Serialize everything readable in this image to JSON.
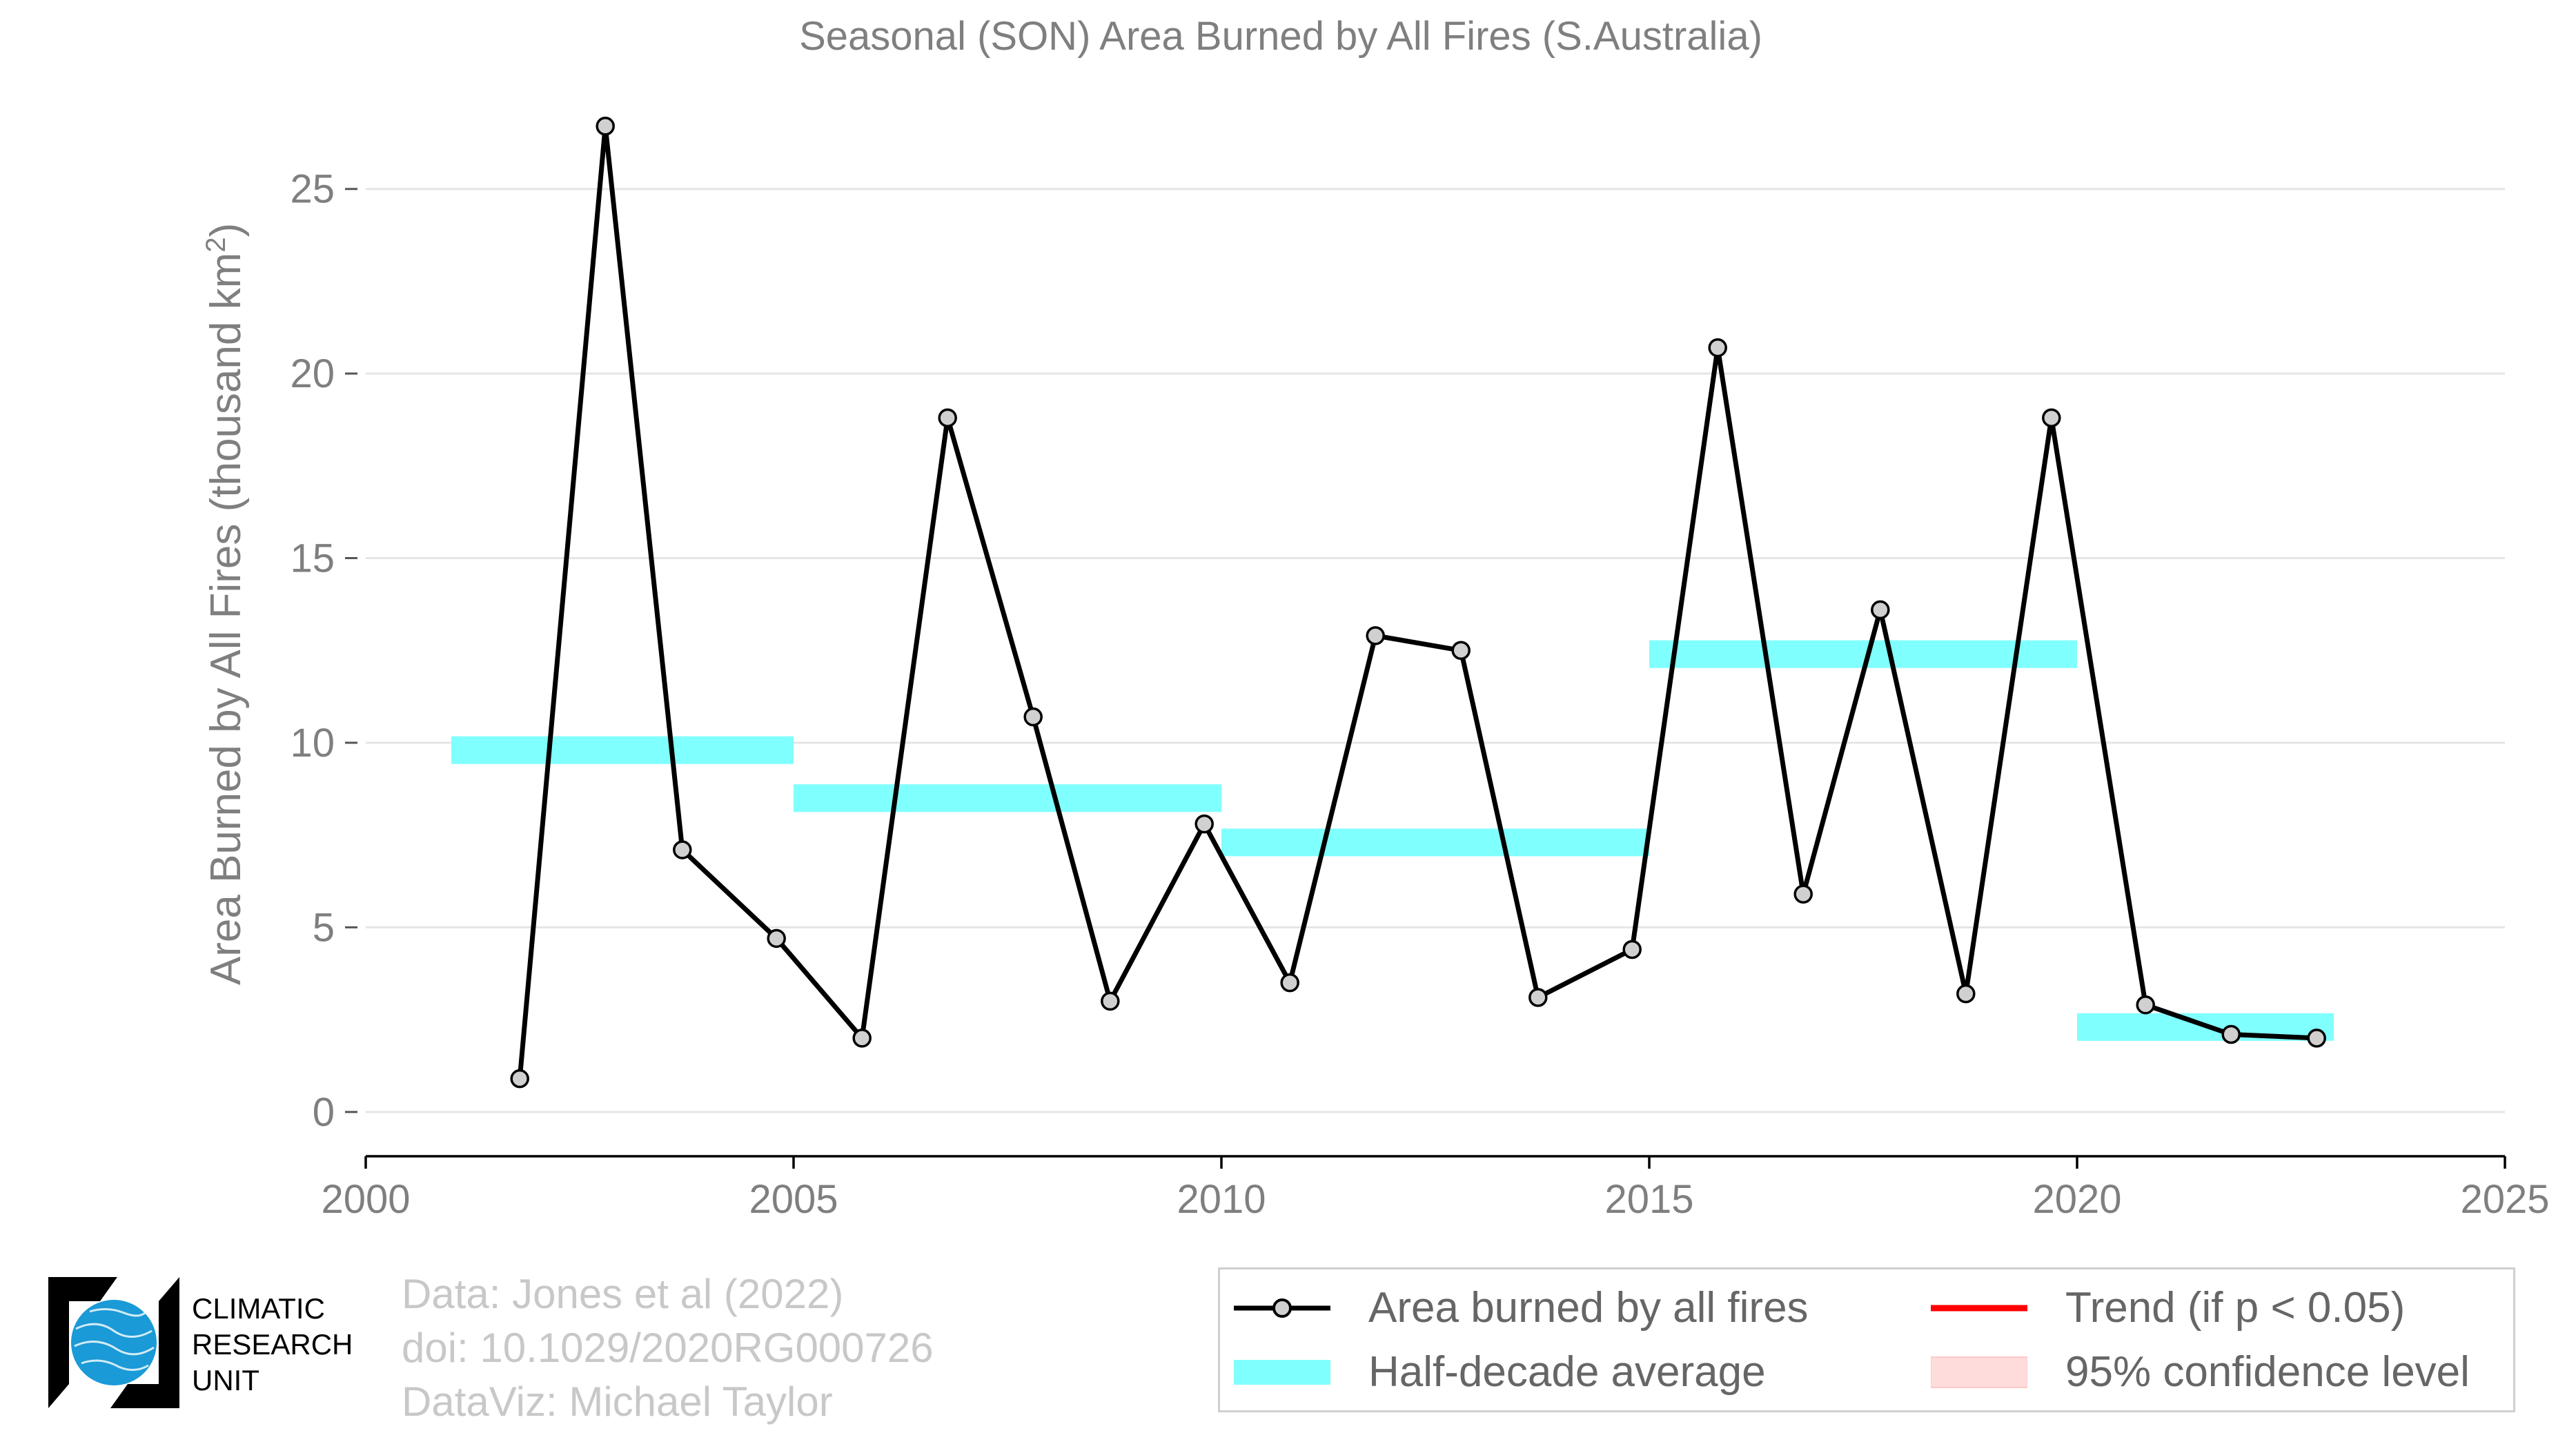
{
  "chart_data": {
    "type": "line",
    "title": "Seasonal (SON) Area Burned by All Fires (S.Australia)",
    "ylabel_main": "Area Burned by All Fires (thousand km",
    "ylabel_sup": "2",
    "ylabel_end": ")",
    "xlim": [
      2000,
      2025
    ],
    "ylim": [
      -1.2,
      27.5
    ],
    "xticks": [
      2000,
      2005,
      2010,
      2015,
      2020,
      2025
    ],
    "yticks": [
      0,
      5,
      10,
      15,
      20,
      25
    ],
    "grid": true,
    "series": [
      {
        "name": "Area burned by all fires",
        "color": "#000000",
        "marker_color": "#d0d0d0",
        "x": [
          2001.8,
          2002.8,
          2003.7,
          2004.8,
          2005.8,
          2006.8,
          2007.8,
          2008.7,
          2009.8,
          2010.8,
          2011.8,
          2012.8,
          2013.7,
          2014.8,
          2015.8,
          2016.8,
          2017.7,
          2018.7,
          2019.7,
          2020.8,
          2021.8,
          2022.8
        ],
        "y": [
          0.9,
          26.7,
          7.1,
          4.7,
          2.0,
          18.8,
          10.7,
          3.0,
          7.8,
          3.5,
          12.9,
          12.5,
          3.1,
          4.4,
          20.7,
          5.9,
          13.6,
          3.2,
          18.8,
          2.9,
          2.1,
          2.0
        ]
      }
    ],
    "half_decade_average": {
      "name": "Half-decade average",
      "color": "#80ffff",
      "segments": [
        {
          "x_start": 2001,
          "x_end": 2005,
          "value": 9.8
        },
        {
          "x_start": 2005,
          "x_end": 2010,
          "value": 8.5
        },
        {
          "x_start": 2010,
          "x_end": 2015,
          "value": 7.3
        },
        {
          "x_start": 2015,
          "x_end": 2020,
          "value": 12.4
        },
        {
          "x_start": 2020,
          "x_end": 2023,
          "value": 2.3
        }
      ]
    },
    "legend": {
      "placement": "bottom-right",
      "entries": [
        {
          "label": "Area burned by all fires",
          "kind": "line-marker",
          "color": "#000000"
        },
        {
          "label": "Trend (if p < 0.05)",
          "kind": "line",
          "color": "#ff0000"
        },
        {
          "label": "Half-decade average",
          "kind": "band",
          "color": "#80ffff"
        },
        {
          "label": "95% confidence level",
          "kind": "band",
          "color": "#ffdcdc"
        }
      ]
    }
  },
  "credits": {
    "line1": "Data: Jones et al (2022)",
    "line2": "doi: 10.1029/2020RG000726",
    "line3": "DataViz: Michael Taylor"
  },
  "logo": {
    "line1": "CLIMATIC",
    "line2": "RESEARCH",
    "line3": "UNIT",
    "icon": "globe-icon",
    "globe_color": "#1a9ad6"
  }
}
